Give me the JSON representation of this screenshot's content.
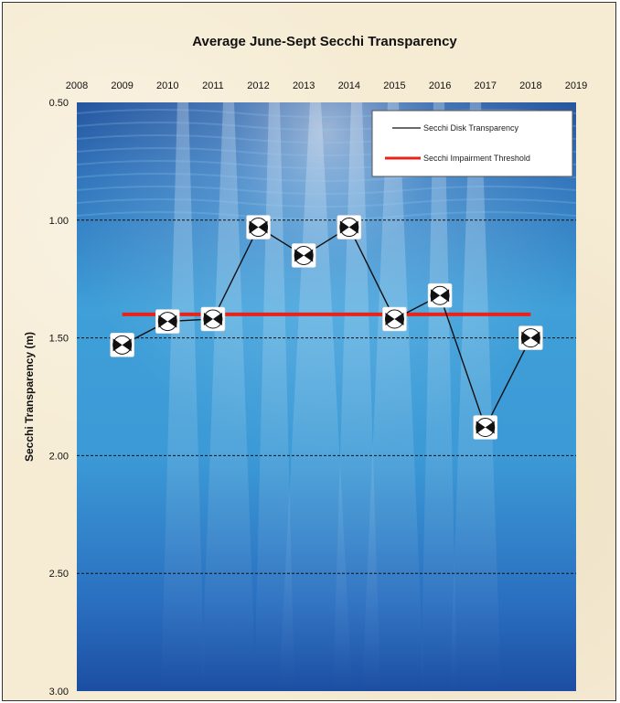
{
  "chart_data": {
    "type": "line",
    "title": "Average June-Sept Secchi Transparency",
    "xlabel": "",
    "ylabel": "Secchi Transparency (m)",
    "x_ticks": [
      "2008",
      "2009",
      "2010",
      "2011",
      "2012",
      "2013",
      "2014",
      "2015",
      "2016",
      "2017",
      "2018",
      "2019"
    ],
    "y_ticks": [
      "0.50",
      "1.00",
      "1.50",
      "2.00",
      "2.50",
      "3.00"
    ],
    "xlim": [
      2008,
      2019
    ],
    "ylim": [
      0.5,
      3.0
    ],
    "y_inverted": true,
    "x_axis_position": "top",
    "grid": "horizontal dashed",
    "legend_position": "top-right",
    "series": [
      {
        "name": "Secchi Disk Transparency",
        "color": "#111111",
        "marker": "secchi-disk",
        "x": [
          2009,
          2010,
          2011,
          2012,
          2013,
          2014,
          2015,
          2016,
          2017,
          2018
        ],
        "y": [
          1.53,
          1.43,
          1.42,
          1.03,
          1.15,
          1.03,
          1.42,
          1.32,
          1.88,
          1.5
        ]
      },
      {
        "name": "Secchi Impairment Threshold",
        "color": "#e8231a",
        "x": [
          2009,
          2018
        ],
        "y": [
          1.4,
          1.4
        ]
      }
    ]
  }
}
